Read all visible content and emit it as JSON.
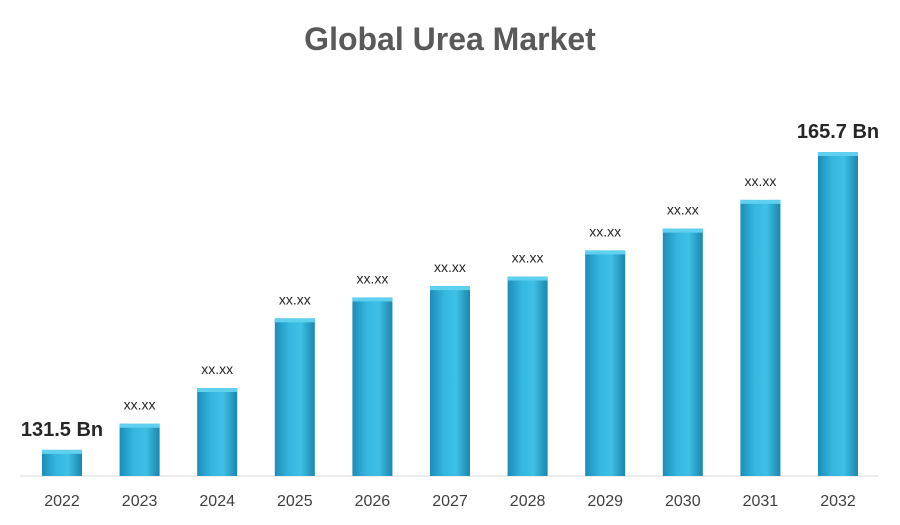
{
  "chart_data": {
    "type": "bar",
    "title": "Global Urea Market",
    "categories": [
      "2022",
      "2023",
      "2024",
      "2025",
      "2026",
      "2027",
      "2028",
      "2029",
      "2030",
      "2031",
      "2032"
    ],
    "values": [
      131.5,
      134.5,
      138.6,
      146.6,
      149.0,
      150.3,
      151.4,
      154.4,
      156.9,
      160.2,
      165.7
    ],
    "data_labels": [
      "131.5 Bn",
      "xx.xx",
      "xx.xx",
      "xx.xx",
      "xx.xx",
      "xx.xx",
      "xx.xx",
      "xx.xx",
      "xx.xx",
      "xx.xx",
      "165.7 Bn"
    ],
    "ylim": [
      128.5,
      165.7
    ],
    "xlabel": "",
    "ylabel": "",
    "grid": false,
    "legend": "none",
    "bar_color": "#2aa9d3",
    "bar_top_color": "#5fd0ee"
  }
}
